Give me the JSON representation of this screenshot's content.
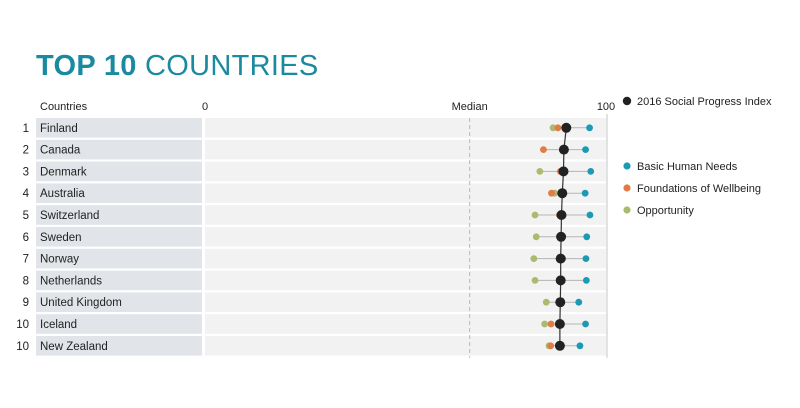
{
  "title": {
    "bold": "TOP 10",
    "rest": "COUNTRIES"
  },
  "chart_data": {
    "type": "dot-plot",
    "title": "TOP 10 COUNTRIES",
    "column_header": "Countries",
    "axis": {
      "min_label": "0",
      "max_label": "100",
      "median_label": "Median",
      "range": [
        0,
        100
      ],
      "median": 66
    },
    "index_series": {
      "name": "2016 Social Progress Index",
      "color": "#222222"
    },
    "series": [
      {
        "name": "Basic Human Needs",
        "color": "#1c9ab4"
      },
      {
        "name": "Foundations of Wellbeing",
        "color": "#e07c46"
      },
      {
        "name": "Opportunity",
        "color": "#a9bb6d"
      }
    ],
    "rows": [
      {
        "rank": "1",
        "country": "Finland",
        "spi": 90.1,
        "bhn": 95.9,
        "fow": 88.0,
        "opp": 86.8
      },
      {
        "rank": "2",
        "country": "Canada",
        "spi": 89.5,
        "bhn": 94.9,
        "fow": 84.4,
        "opp": 89.5
      },
      {
        "rank": "3",
        "country": "Denmark",
        "spi": 89.4,
        "bhn": 96.2,
        "fow": 88.6,
        "opp": 83.5
      },
      {
        "rank": "4",
        "country": "Australia",
        "spi": 89.1,
        "bhn": 94.8,
        "fow": 86.4,
        "opp": 87.2
      },
      {
        "rank": "5",
        "country": "Switzerland",
        "spi": 88.9,
        "bhn": 96.0,
        "fow": 88.4,
        "opp": 82.3
      },
      {
        "rank": "6",
        "country": "Sweden",
        "spi": 88.8,
        "bhn": 95.2,
        "fow": 88.6,
        "opp": 82.6
      },
      {
        "rank": "7",
        "country": "Norway",
        "spi": 88.7,
        "bhn": 95.0,
        "fow": 89.2,
        "opp": 82.0
      },
      {
        "rank": "8",
        "country": "Netherlands",
        "spi": 88.7,
        "bhn": 95.1,
        "fow": 88.7,
        "opp": 82.3
      },
      {
        "rank": "9",
        "country": "United Kingdom",
        "spi": 88.6,
        "bhn": 93.2,
        "fow": 88.2,
        "opp": 85.1
      },
      {
        "rank": "10",
        "country": "Iceland",
        "spi": 88.5,
        "bhn": 94.9,
        "fow": 86.3,
        "opp": 84.7
      },
      {
        "rank": "10",
        "country": "New Zealand",
        "spi": 88.5,
        "bhn": 93.5,
        "fow": 86.2,
        "opp": 85.8
      }
    ]
  }
}
